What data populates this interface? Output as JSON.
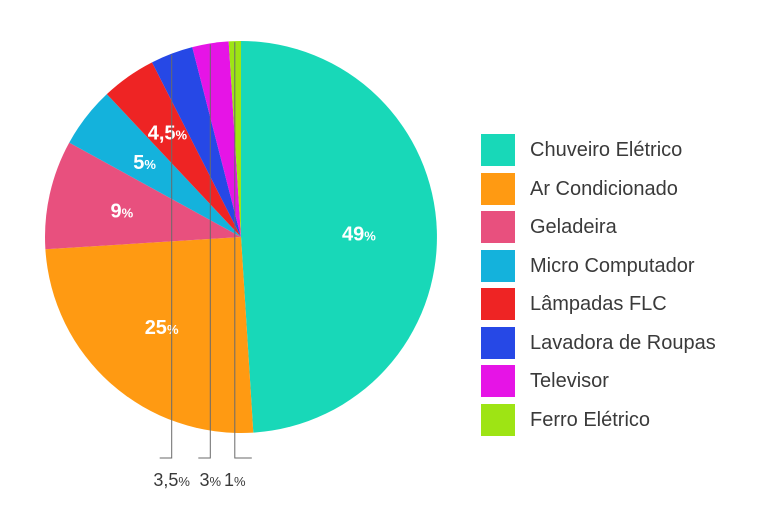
{
  "chart_data": {
    "type": "pie",
    "categories": [
      "Chuveiro Elétrico",
      "Ar Condicionado",
      "Geladeira",
      "Micro Computador",
      "Lâmpadas FLC",
      "Lavadora de Roupas",
      "Televisor",
      "Ferro Elétrico"
    ],
    "values": [
      49,
      25,
      9,
      5,
      4.5,
      3.5,
      3,
      1
    ],
    "value_labels": [
      "49",
      "25",
      "9",
      "5",
      "4,5",
      "3,5",
      "3",
      "1"
    ],
    "unit": "%",
    "colors": [
      "#18d8b8",
      "#ff9a12",
      "#e8507e",
      "#14b2dc",
      "#ee2424",
      "#2648e6",
      "#e614e6",
      "#9ee414"
    ],
    "legend": "right",
    "outside_labels": [
      "3,5",
      "3",
      "1"
    ]
  }
}
